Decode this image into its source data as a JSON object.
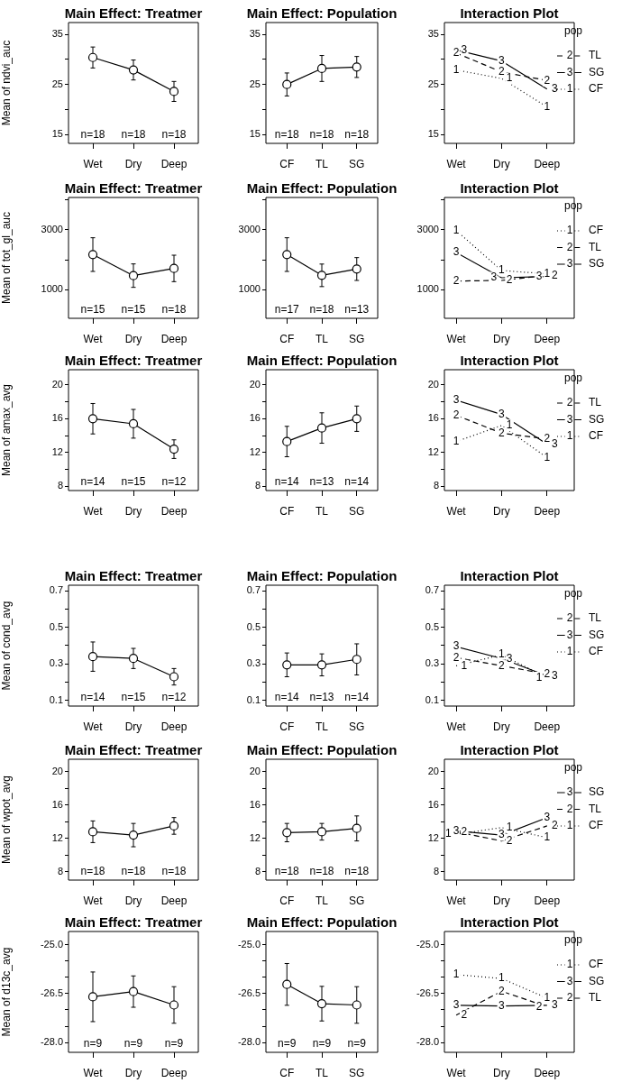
{
  "chart_data": [
    {
      "type": "line",
      "title": "Main Effect: Treatmer",
      "ylabel": "Mean of ndvi_auc",
      "categories": [
        "Wet",
        "Dry",
        "Deep"
      ],
      "values": [
        30.4,
        27.9,
        23.6
      ],
      "errors": [
        2.1,
        2.0,
        2.0
      ],
      "color": "#000000",
      "marker": "circle",
      "line_style": "solid",
      "ylim": [
        13.2,
        37.4
      ],
      "yticks": [
        15,
        {
          "value": 20,
          "label": null
        },
        25,
        {
          "value": 30,
          "label": null
        },
        35
      ],
      "annotations": [
        "n=18",
        "n=18",
        "n=18"
      ]
    },
    {
      "type": "line",
      "title": "Main Effect: Population",
      "categories": [
        "CF",
        "TL",
        "SG"
      ],
      "values": [
        25.0,
        28.2,
        28.5
      ],
      "errors": [
        2.3,
        2.6,
        2.1
      ],
      "color": "#000000",
      "marker": "circle",
      "line_style": "solid",
      "ylim": [
        13.2,
        37.4
      ],
      "yticks": [
        15,
        {
          "value": 20,
          "label": null
        },
        25,
        {
          "value": 30,
          "label": null
        },
        35
      ],
      "annotations": [
        "n=18",
        "n=18",
        "n=18"
      ]
    },
    {
      "type": "line",
      "title": "Interaction Plot",
      "categories": [
        "Wet",
        "Dry",
        "Deep"
      ],
      "legend": "top right",
      "legend_title": "pop",
      "ylim": [
        13.2,
        37.4
      ],
      "yticks": [
        15,
        {
          "value": 20,
          "label": null
        },
        25,
        {
          "value": 30,
          "label": null
        },
        35
      ],
      "series": [
        {
          "name": "TL",
          "color": "#000000",
          "line_style": "dashed",
          "values": [
            31.3,
            27.5,
            25.8
          ]
        },
        {
          "name": "SG",
          "color": "#000000",
          "line_style": "solid",
          "values": [
            31.9,
            29.7,
            24.1
          ]
        },
        {
          "name": "CF",
          "color": "#000000",
          "line_style": "dotted",
          "values": [
            27.9,
            26.2,
            20.5
          ]
        }
      ],
      "annotations": [
        "2",
        "3",
        "1",
        {
          "text": "2",
          "x": "Wet",
          "y": 31.3
        },
        {
          "text": "2",
          "x": "Dry",
          "y": 27.5
        },
        {
          "text": "2",
          "x": "Deep",
          "y": 25.8
        },
        {
          "text": "3",
          "x": "Wet",
          "y": 31.9
        },
        {
          "text": "3",
          "x": "Dry",
          "y": 29.7
        },
        {
          "text": "3",
          "x": "Deep",
          "y": 24.1
        },
        {
          "text": "1",
          "x": "Wet",
          "y": 27.9
        },
        {
          "text": "1",
          "x": "Dry",
          "y": 26.2
        },
        {
          "text": "1",
          "x": "Deep",
          "y": 20.5
        }
      ]
    },
    {
      "type": "line",
      "title": "Main Effect: Treatmer",
      "ylabel": "Mean of tot_gl_auc",
      "categories": [
        "Wet",
        "Dry",
        "Deep"
      ],
      "values": [
        2170,
        1470,
        1710
      ],
      "errors": [
        560,
        390,
        440
      ],
      "color": "#000000",
      "marker": "circle",
      "line_style": "solid",
      "ylim": [
        50,
        4070
      ],
      "yticks": [
        1000,
        {
          "value": 2000,
          "label": null
        },
        3000,
        {
          "value": 4000,
          "label": null
        }
      ],
      "annotations": [
        "n=15",
        "n=15",
        "n=18"
      ]
    },
    {
      "type": "line",
      "title": "Main Effect: Population",
      "categories": [
        "CF",
        "TL",
        "SG"
      ],
      "values": [
        2170,
        1480,
        1690
      ],
      "errors": [
        560,
        375,
        380
      ],
      "color": "#000000",
      "marker": "circle",
      "line_style": "solid",
      "ylim": [
        50,
        4070
      ],
      "yticks": [
        1000,
        {
          "value": 2000,
          "label": null
        },
        3000,
        {
          "value": 4000,
          "label": null
        }
      ],
      "annotations": [
        "n=17",
        "n=18",
        "n=13"
      ]
    },
    {
      "type": "line",
      "title": "Interaction Plot",
      "categories": [
        "Wet",
        "Dry",
        "Deep"
      ],
      "legend": "top right",
      "legend_title": "pop",
      "ylim": [
        50,
        4070
      ],
      "yticks": [
        1000,
        {
          "value": 2000,
          "label": null
        },
        3000,
        {
          "value": 4000,
          "label": null
        }
      ],
      "series": [
        {
          "name": "CF",
          "color": "#000000",
          "line_style": "dotted",
          "values": [
            2970,
            1640,
            1530
          ]
        },
        {
          "name": "TL",
          "color": "#000000",
          "line_style": "dashed",
          "values": [
            1290,
            1310,
            1480
          ]
        },
        {
          "name": "SG",
          "color": "#000000",
          "line_style": "solid",
          "values": [
            2240,
            1400,
            1440
          ]
        }
      ],
      "annotations": [
        "1",
        "2",
        "3",
        {
          "text": "1",
          "x": "Wet",
          "y": 2970
        },
        {
          "text": "1",
          "x": "Dry",
          "y": 1640
        },
        {
          "text": "1",
          "x": "Deep",
          "y": 1530
        },
        {
          "text": "2",
          "x": "Wet",
          "y": 1290
        },
        {
          "text": "2",
          "x": "Dry",
          "y": 1310
        },
        {
          "text": "2",
          "x": "Deep",
          "y": 1480
        },
        {
          "text": "3",
          "x": "Wet",
          "y": 2240
        },
        {
          "text": "3",
          "x": "Dry",
          "y": 1400
        },
        {
          "text": "3",
          "x": "Deep",
          "y": 1440
        }
      ]
    },
    {
      "type": "line",
      "title": "Main Effect: Treatmer",
      "ylabel": "Mean of amax_avg",
      "categories": [
        "Wet",
        "Dry",
        "Deep"
      ],
      "values": [
        16.0,
        15.4,
        12.4
      ],
      "errors": [
        1.8,
        1.7,
        1.1
      ],
      "color": "#000000",
      "marker": "circle",
      "line_style": "solid",
      "ylim": [
        7.5,
        21.8
      ],
      "yticks": [
        8,
        {
          "value": 10,
          "label": null
        },
        12,
        {
          "value": 14,
          "label": null
        },
        16,
        {
          "value": 18,
          "label": null
        },
        20
      ],
      "annotations": [
        "n=14",
        "n=15",
        "n=12"
      ]
    },
    {
      "type": "line",
      "title": "Main Effect: Population",
      "categories": [
        "CF",
        "TL",
        "SG"
      ],
      "values": [
        13.3,
        14.9,
        16.0
      ],
      "errors": [
        1.8,
        1.8,
        1.5
      ],
      "color": "#000000",
      "marker": "circle",
      "line_style": "solid",
      "ylim": [
        7.5,
        21.8
      ],
      "yticks": [
        8,
        {
          "value": 10,
          "label": null
        },
        12,
        {
          "value": 14,
          "label": null
        },
        16,
        {
          "value": 18,
          "label": null
        },
        20
      ],
      "annotations": [
        "n=14",
        "n=13",
        "n=14"
      ]
    },
    {
      "type": "line",
      "title": "Interaction Plot",
      "categories": [
        "Wet",
        "Dry",
        "Deep"
      ],
      "legend": "top right",
      "legend_title": "pop",
      "ylim": [
        7.5,
        21.8
      ],
      "yticks": [
        8,
        {
          "value": 10,
          "label": null
        },
        12,
        {
          "value": 14,
          "label": null
        },
        16,
        {
          "value": 18,
          "label": null
        },
        20
      ],
      "series": [
        {
          "name": "TL",
          "color": "#000000",
          "line_style": "dashed",
          "values": [
            16.4,
            14.3,
            13.6
          ]
        },
        {
          "name": "SG",
          "color": "#000000",
          "line_style": "solid",
          "values": [
            18.2,
            16.5,
            13.0
          ]
        },
        {
          "name": "CF",
          "color": "#000000",
          "line_style": "dotted",
          "values": [
            13.3,
            15.2,
            11.4
          ]
        }
      ],
      "annotations": [
        "2",
        "3",
        "1",
        {
          "text": "2",
          "x": "Wet",
          "y": 16.4
        },
        {
          "text": "2",
          "x": "Dry",
          "y": 14.3
        },
        {
          "text": "2",
          "x": "Deep",
          "y": 13.6
        },
        {
          "text": "3",
          "x": "Wet",
          "y": 18.2
        },
        {
          "text": "3",
          "x": "Dry",
          "y": 16.5
        },
        {
          "text": "3",
          "x": "Deep",
          "y": 13.0
        },
        {
          "text": "1",
          "x": "Wet",
          "y": 13.3
        },
        {
          "text": "1",
          "x": "Dry",
          "y": 15.2
        },
        {
          "text": "1",
          "x": "Deep",
          "y": 11.4
        }
      ]
    },
    {
      "type": "line",
      "title": "Main Effect: Treatmer",
      "ylabel": "Mean of cond_avg",
      "categories": [
        "Wet",
        "Dry",
        "Deep"
      ],
      "values": [
        0.34,
        0.33,
        0.23
      ],
      "errors": [
        0.08,
        0.055,
        0.045
      ],
      "color": "#000000",
      "marker": "circle",
      "line_style": "solid",
      "ylim": [
        0.07,
        0.73
      ],
      "yticks": [
        0.1,
        {
          "value": 0.2,
          "label": null
        },
        0.3,
        {
          "value": 0.4,
          "label": null
        },
        0.5,
        {
          "value": 0.6,
          "label": null
        },
        0.7
      ],
      "annotations": [
        "n=14",
        "n=15",
        "n=12"
      ]
    },
    {
      "type": "line",
      "title": "Main Effect: Population",
      "categories": [
        "CF",
        "TL",
        "SG"
      ],
      "values": [
        0.295,
        0.295,
        0.325
      ],
      "errors": [
        0.065,
        0.06,
        0.085
      ],
      "color": "#000000",
      "marker": "circle",
      "line_style": "solid",
      "ylim": [
        0.07,
        0.73
      ],
      "yticks": [
        0.1,
        {
          "value": 0.2,
          "label": null
        },
        0.3,
        {
          "value": 0.4,
          "label": null
        },
        0.5,
        {
          "value": 0.6,
          "label": null
        },
        0.7
      ],
      "annotations": [
        "n=14",
        "n=13",
        "n=14"
      ]
    },
    {
      "type": "line",
      "title": "Interaction Plot",
      "categories": [
        "Wet",
        "Dry",
        "Deep"
      ],
      "legend": "top right",
      "legend_title": "pop",
      "ylim": [
        0.07,
        0.73
      ],
      "yticks": [
        0.1,
        {
          "value": 0.2,
          "label": null
        },
        0.3,
        {
          "value": 0.4,
          "label": null
        },
        0.5,
        {
          "value": 0.6,
          "label": null
        },
        0.7
      ],
      "series": [
        {
          "name": "TL",
          "color": "#000000",
          "line_style": "dashed",
          "values": [
            0.335,
            0.29,
            0.245
          ]
        },
        {
          "name": "SG",
          "color": "#000000",
          "line_style": "solid",
          "values": [
            0.395,
            0.33,
            0.235
          ]
        },
        {
          "name": "CF",
          "color": "#000000",
          "line_style": "dotted",
          "values": [
            0.29,
            0.35,
            0.225
          ]
        }
      ],
      "annotations": [
        "2",
        "3",
        "1",
        {
          "text": "2",
          "x": "Wet",
          "y": 0.335
        },
        {
          "text": "2",
          "x": "Dry",
          "y": 0.29
        },
        {
          "text": "2",
          "x": "Deep",
          "y": 0.245
        },
        {
          "text": "3",
          "x": "Wet",
          "y": 0.395
        },
        {
          "text": "3",
          "x": "Dry",
          "y": 0.33
        },
        {
          "text": "3",
          "x": "Deep",
          "y": 0.235
        },
        {
          "text": "1",
          "x": "Wet",
          "y": 0.29
        },
        {
          "text": "1",
          "x": "Dry",
          "y": 0.35
        },
        {
          "text": "1",
          "x": "Deep",
          "y": 0.225
        }
      ]
    },
    {
      "type": "line",
      "title": "Main Effect: Treatmer",
      "ylabel": "Mean of wpot_avg",
      "categories": [
        "Wet",
        "Dry",
        "Deep"
      ],
      "values": [
        12.8,
        12.4,
        13.5
      ],
      "errors": [
        1.3,
        1.4,
        1.0
      ],
      "color": "#000000",
      "marker": "circle",
      "line_style": "solid",
      "ylim": [
        7.0,
        21.5
      ],
      "yticks": [
        8,
        {
          "value": 10,
          "label": null
        },
        12,
        {
          "value": 14,
          "label": null
        },
        16,
        {
          "value": 18,
          "label": null
        },
        20
      ],
      "annotations": [
        "n=18",
        "n=18",
        "n=18"
      ]
    },
    {
      "type": "line",
      "title": "Main Effect: Population",
      "categories": [
        "CF",
        "TL",
        "SG"
      ],
      "values": [
        12.7,
        12.8,
        13.2
      ],
      "errors": [
        1.1,
        1.0,
        1.5
      ],
      "color": "#000000",
      "marker": "circle",
      "line_style": "solid",
      "ylim": [
        7.0,
        21.5
      ],
      "yticks": [
        8,
        {
          "value": 10,
          "label": null
        },
        12,
        {
          "value": 14,
          "label": null
        },
        16,
        {
          "value": 18,
          "label": null
        },
        20
      ],
      "annotations": [
        "n=18",
        "n=18",
        "n=18"
      ]
    },
    {
      "type": "line",
      "title": "Interaction Plot",
      "categories": [
        "Wet",
        "Dry",
        "Deep"
      ],
      "legend": "top right",
      "legend_title": "pop",
      "ylim": [
        7.0,
        21.5
      ],
      "yticks": [
        8,
        {
          "value": 10,
          "label": null
        },
        12,
        {
          "value": 14,
          "label": null
        },
        16,
        {
          "value": 18,
          "label": null
        },
        20
      ],
      "series": [
        {
          "name": "SG",
          "color": "#000000",
          "line_style": "solid",
          "values": [
            12.9,
            12.4,
            14.5
          ]
        },
        {
          "name": "TL",
          "color": "#000000",
          "line_style": "dashed",
          "values": [
            12.8,
            11.7,
            13.5
          ]
        },
        {
          "name": "CF",
          "color": "#000000",
          "line_style": "dotted",
          "values": [
            12.5,
            13.3,
            12.1
          ]
        }
      ],
      "annotations": [
        "3",
        "2",
        "1",
        {
          "text": "3",
          "x": "Wet",
          "y": 12.9
        },
        {
          "text": "3",
          "x": "Dry",
          "y": 12.4
        },
        {
          "text": "3",
          "x": "Deep",
          "y": 14.5
        },
        {
          "text": "2",
          "x": "Wet",
          "y": 12.8
        },
        {
          "text": "2",
          "x": "Dry",
          "y": 11.7
        },
        {
          "text": "2",
          "x": "Deep",
          "y": 13.5
        },
        {
          "text": "1",
          "x": "Wet",
          "y": 12.5
        },
        {
          "text": "1",
          "x": "Dry",
          "y": 13.3
        },
        {
          "text": "1",
          "x": "Deep",
          "y": 12.1
        }
      ]
    },
    {
      "type": "line",
      "title": "Main Effect: Treatmer",
      "ylabel": "Mean of d13c_avg",
      "categories": [
        "Wet",
        "Dry",
        "Deep"
      ],
      "values": [
        -26.6,
        -26.44,
        -26.85
      ],
      "errors": [
        0.76,
        0.48,
        0.56
      ],
      "color": "#000000",
      "marker": "circle",
      "line_style": "solid",
      "ylim": [
        -28.3,
        -24.6
      ],
      "yticks": [
        {
          "value": -25,
          "label": "-25.0"
        },
        {
          "value": -25.5,
          "label": null
        },
        {
          "value": -26,
          "label": null
        },
        -26.5,
        {
          "value": -27,
          "label": null
        },
        {
          "value": -27.5,
          "label": null
        },
        {
          "value": -28,
          "label": "-28.0"
        }
      ],
      "annotations": [
        "n=9",
        "n=9",
        "n=9"
      ]
    },
    {
      "type": "line",
      "title": "Main Effect: Population",
      "categories": [
        "CF",
        "TL",
        "SG"
      ],
      "values": [
        -26.22,
        -26.81,
        -26.85
      ],
      "errors": [
        0.64,
        0.53,
        0.56
      ],
      "color": "#000000",
      "marker": "circle",
      "line_style": "solid",
      "ylim": [
        -28.3,
        -24.6
      ],
      "yticks": [
        {
          "value": -25,
          "label": "-25.0"
        },
        {
          "value": -25.5,
          "label": null
        },
        {
          "value": -26,
          "label": null
        },
        -26.5,
        {
          "value": -27,
          "label": null
        },
        {
          "value": -27.5,
          "label": null
        },
        {
          "value": -28,
          "label": "-28.0"
        }
      ],
      "annotations": [
        "n=9",
        "n=9",
        "n=9"
      ]
    },
    {
      "type": "line",
      "title": "Interaction Plot",
      "categories": [
        "Wet",
        "Dry",
        "Deep"
      ],
      "legend": "top right",
      "legend_title": "pop",
      "ylim": [
        -28.3,
        -24.6
      ],
      "yticks": [
        {
          "value": -25,
          "label": "-25.0"
        },
        {
          "value": -25.5,
          "label": null
        },
        {
          "value": -26,
          "label": null
        },
        -26.5,
        {
          "value": -27,
          "label": null
        },
        {
          "value": -27.5,
          "label": null
        },
        {
          "value": -28,
          "label": "-28.0"
        }
      ],
      "series": [
        {
          "name": "CF",
          "color": "#000000",
          "line_style": "dotted",
          "values": [
            -25.92,
            -26.04,
            -26.64
          ]
        },
        {
          "name": "SG",
          "color": "#000000",
          "line_style": "solid",
          "values": [
            -26.86,
            -26.88,
            -26.86
          ]
        },
        {
          "name": "TL",
          "color": "#000000",
          "line_style": "dashed",
          "values": [
            -27.16,
            -26.43,
            -26.9
          ]
        }
      ],
      "annotations": [
        "1",
        "3",
        "2",
        {
          "text": "1",
          "x": "Wet",
          "y": -25.92
        },
        {
          "text": "1",
          "x": "Dry",
          "y": -26.04
        },
        {
          "text": "1",
          "x": "Deep",
          "y": -26.64
        },
        {
          "text": "3",
          "x": "Wet",
          "y": -26.86
        },
        {
          "text": "3",
          "x": "Dry",
          "y": -26.88
        },
        {
          "text": "3",
          "x": "Deep",
          "y": -26.86
        },
        {
          "text": "2",
          "x": "Wet",
          "y": -27.16
        },
        {
          "text": "2",
          "x": "Dry",
          "y": -26.43
        },
        {
          "text": "2",
          "x": "Deep",
          "y": -26.9
        }
      ]
    }
  ]
}
